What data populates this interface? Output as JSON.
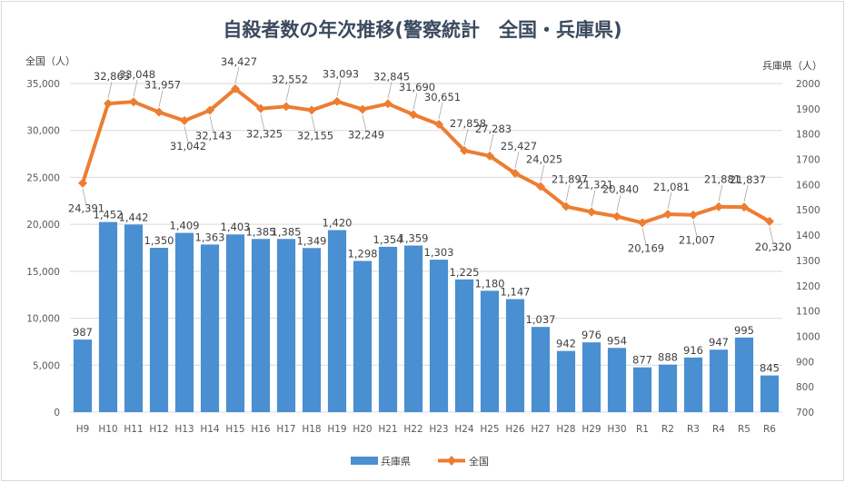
{
  "chart_data": {
    "type": "bar+line",
    "title": "自殺者数の年次推移(警察統計　全国・兵庫県)",
    "left_axis_label": "全国（人）",
    "right_axis_label": "兵庫県（人）",
    "categories": [
      "H9",
      "H10",
      "H11",
      "H12",
      "H13",
      "H14",
      "H15",
      "H16",
      "H17",
      "H18",
      "H19",
      "H20",
      "H21",
      "H22",
      "H23",
      "H24",
      "H25",
      "H26",
      "H27",
      "H28",
      "H29",
      "H30",
      "R1",
      "R2",
      "R3",
      "R4",
      "R5",
      "R6"
    ],
    "series": [
      {
        "name": "兵庫県",
        "type": "bar",
        "axis": "right",
        "color": "#4a8fd1",
        "values": [
          987,
          1452,
          1442,
          1350,
          1409,
          1363,
          1403,
          1385,
          1385,
          1349,
          1420,
          1298,
          1354,
          1359,
          1303,
          1225,
          1180,
          1147,
          1037,
          942,
          976,
          954,
          877,
          888,
          916,
          947,
          995,
          845
        ]
      },
      {
        "name": "全国",
        "type": "line",
        "axis": "left",
        "color": "#ed7d31",
        "values": [
          24391,
          32863,
          33048,
          31957,
          31042,
          32143,
          34427,
          32325,
          32552,
          32155,
          33093,
          32249,
          32845,
          31690,
          30651,
          27858,
          27283,
          25427,
          24025,
          21897,
          21321,
          20840,
          20169,
          21081,
          21007,
          21881,
          21837,
          20320
        ]
      }
    ],
    "left_axis": {
      "min": 0,
      "max": 35000,
      "step": 5000
    },
    "right_axis": {
      "min": 700,
      "max": 2000,
      "step": 100
    },
    "grid": true,
    "legend_position": "bottom"
  }
}
